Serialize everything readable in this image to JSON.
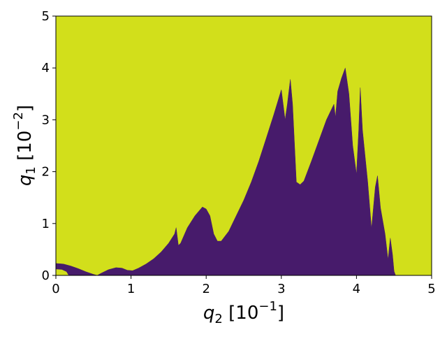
{
  "chart_data": {
    "type": "heatmap",
    "xlabel": "q_2 [10^-1]",
    "ylabel": "q_1 [10^-2]",
    "xlim": [
      0,
      5
    ],
    "ylim": [
      0,
      5
    ],
    "x_ticks": [
      0,
      1,
      2,
      3,
      4,
      5
    ],
    "y_ticks": [
      0,
      1,
      2,
      3,
      4,
      5
    ],
    "x_tick_labels": [
      "0",
      "1",
      "2",
      "3",
      "4",
      "5"
    ],
    "y_tick_labels": [
      "0",
      "1",
      "2",
      "3",
      "4",
      "5"
    ],
    "colors": {
      "background": "#d2df1b",
      "region": "#471b6b"
    },
    "region_boundary": [
      [
        0.0,
        0.0
      ],
      [
        0.0,
        0.23
      ],
      [
        0.1,
        0.22
      ],
      [
        0.2,
        0.18
      ],
      [
        0.3,
        0.13
      ],
      [
        0.4,
        0.07
      ],
      [
        0.5,
        0.02
      ],
      [
        0.55,
        0.0
      ],
      [
        0.6,
        0.04
      ],
      [
        0.7,
        0.11
      ],
      [
        0.8,
        0.15
      ],
      [
        0.88,
        0.14
      ],
      [
        0.95,
        0.1
      ],
      [
        1.02,
        0.09
      ],
      [
        1.1,
        0.14
      ],
      [
        1.2,
        0.22
      ],
      [
        1.3,
        0.32
      ],
      [
        1.4,
        0.45
      ],
      [
        1.5,
        0.62
      ],
      [
        1.58,
        0.8
      ],
      [
        1.6,
        0.92
      ],
      [
        1.63,
        0.58
      ],
      [
        1.66,
        0.62
      ],
      [
        1.75,
        0.92
      ],
      [
        1.85,
        1.15
      ],
      [
        1.95,
        1.32
      ],
      [
        2.0,
        1.28
      ],
      [
        2.05,
        1.15
      ],
      [
        2.1,
        0.8
      ],
      [
        2.15,
        0.66
      ],
      [
        2.2,
        0.66
      ],
      [
        2.3,
        0.85
      ],
      [
        2.4,
        1.15
      ],
      [
        2.5,
        1.45
      ],
      [
        2.6,
        1.8
      ],
      [
        2.7,
        2.2
      ],
      [
        2.8,
        2.65
      ],
      [
        2.9,
        3.1
      ],
      [
        3.0,
        3.58
      ],
      [
        3.05,
        3.0
      ],
      [
        3.08,
        3.3
      ],
      [
        3.12,
        3.78
      ],
      [
        3.15,
        3.3
      ],
      [
        3.2,
        1.8
      ],
      [
        3.25,
        1.75
      ],
      [
        3.3,
        1.82
      ],
      [
        3.4,
        2.2
      ],
      [
        3.5,
        2.6
      ],
      [
        3.6,
        3.0
      ],
      [
        3.7,
        3.3
      ],
      [
        3.72,
        3.05
      ],
      [
        3.75,
        3.55
      ],
      [
        3.8,
        3.8
      ],
      [
        3.85,
        4.0
      ],
      [
        3.9,
        3.5
      ],
      [
        3.95,
        2.5
      ],
      [
        4.0,
        1.95
      ],
      [
        4.03,
        2.8
      ],
      [
        4.05,
        3.62
      ],
      [
        4.08,
        2.8
      ],
      [
        4.15,
        1.8
      ],
      [
        4.2,
        0.9
      ],
      [
        4.25,
        1.7
      ],
      [
        4.28,
        1.92
      ],
      [
        4.32,
        1.3
      ],
      [
        4.38,
        0.8
      ],
      [
        4.42,
        0.3
      ],
      [
        4.45,
        0.72
      ],
      [
        4.48,
        0.4
      ],
      [
        4.5,
        0.08
      ],
      [
        4.52,
        0.0
      ]
    ],
    "inner_pocket": [
      [
        0.0,
        0.0
      ],
      [
        0.0,
        0.12
      ],
      [
        0.08,
        0.11
      ],
      [
        0.14,
        0.07
      ],
      [
        0.17,
        0.0
      ]
    ]
  }
}
